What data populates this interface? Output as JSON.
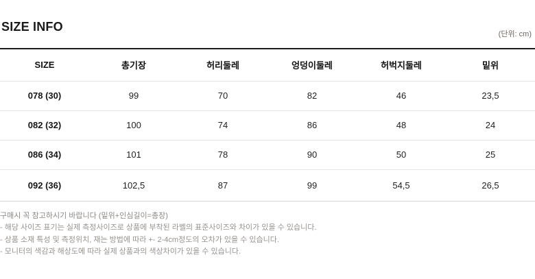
{
  "header": {
    "title": "SIZE INFO",
    "unit": "(단위: cm)"
  },
  "table": {
    "columns": [
      "SIZE",
      "총기장",
      "허리둘레",
      "엉덩이둘레",
      "허벅지둘레",
      "밑위"
    ],
    "rows": [
      [
        "078 (30)",
        "99",
        "70",
        "82",
        "46",
        "23,5"
      ],
      [
        "082 (32)",
        "100",
        "74",
        "86",
        "48",
        "24"
      ],
      [
        "086 (34)",
        "101",
        "78",
        "90",
        "50",
        "25"
      ],
      [
        "092 (36)",
        "102,5",
        "87",
        "99",
        "54,5",
        "26,5"
      ]
    ]
  },
  "notes": [
    "구매시 꼭 참고하시기 바랍니다 (밑위+인심길이=총장)",
    "- 해당 사이즈 표기는 실제 측정사이즈로 상품에 부착된 라벨의 표준사이즈와 차이가 있을 수 있습니다.",
    "- 상품 소재 특성 및 측정위치, 재는 방법에 따라 +- 2-4cm정도의 오차가 있을 수 있습니다.",
    "- 모니터의 색감과 해상도에 따라 실제 상품과의 색상차이가 있을 수 있습니다."
  ]
}
